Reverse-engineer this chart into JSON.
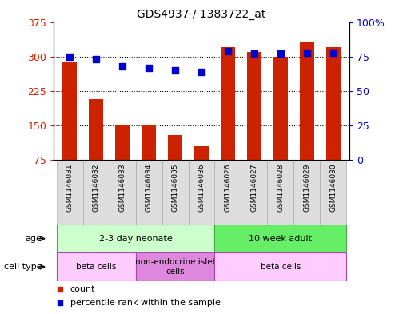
{
  "title": "GDS4937 / 1383722_at",
  "samples": [
    "GSM1146031",
    "GSM1146032",
    "GSM1146033",
    "GSM1146034",
    "GSM1146035",
    "GSM1146036",
    "GSM1146026",
    "GSM1146027",
    "GSM1146028",
    "GSM1146029",
    "GSM1146030"
  ],
  "counts": [
    290,
    207,
    150,
    150,
    130,
    105,
    320,
    310,
    300,
    330,
    320
  ],
  "percentiles": [
    75,
    73,
    68,
    67,
    65,
    64,
    79,
    77,
    77,
    78,
    78
  ],
  "left_ylim": [
    75,
    375
  ],
  "left_yticks": [
    75,
    150,
    225,
    300,
    375
  ],
  "right_ylim": [
    0,
    100
  ],
  "right_yticks": [
    0,
    25,
    50,
    75,
    100
  ],
  "right_yticklabels": [
    "0",
    "25",
    "50",
    "75",
    "100%"
  ],
  "bar_color": "#cc2200",
  "dot_color": "#0000cc",
  "dot_size": 28,
  "bar_width": 0.55,
  "age_groups": [
    {
      "label": "2-3 day neonate",
      "start": 0,
      "end": 6,
      "color": "#ccffcc"
    },
    {
      "label": "10 week adult",
      "start": 6,
      "end": 11,
      "color": "#66ee66"
    }
  ],
  "cell_type_groups": [
    {
      "label": "beta cells",
      "start": 0,
      "end": 3,
      "color": "#ffccff"
    },
    {
      "label": "non-endocrine islet\ncells",
      "start": 3,
      "end": 6,
      "color": "#dd88dd"
    },
    {
      "label": "beta cells",
      "start": 6,
      "end": 11,
      "color": "#ffccff"
    }
  ],
  "sample_box_color": "#dddddd",
  "sample_box_edge": "#aaaaaa",
  "age_edge_color": "#44aa44",
  "cell_edge_color": "#aa44aa",
  "grid_color": "black",
  "bg_color": "white"
}
